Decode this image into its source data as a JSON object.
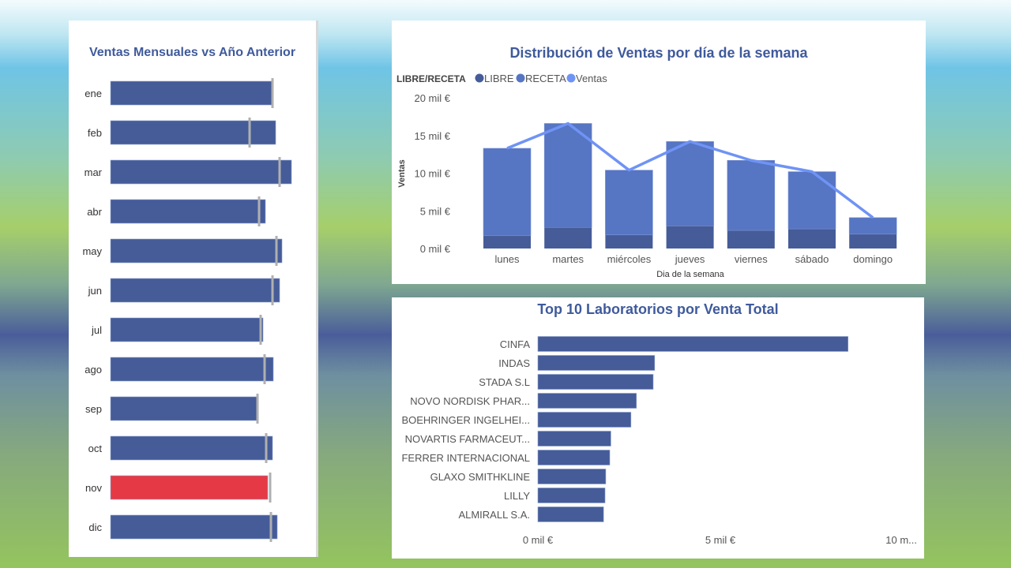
{
  "chart_data": [
    {
      "type": "bar",
      "orientation": "horizontal-bullet",
      "title": "Ventas Mensuales vs Año Anterior",
      "categories": [
        "ene",
        "feb",
        "mar",
        "abr",
        "may",
        "jun",
        "jul",
        "ago",
        "sep",
        "oct",
        "nov",
        "dic"
      ],
      "series": [
        {
          "name": "Ventas",
          "values": [
            205,
            209,
            229,
            196,
            217,
            214,
            193,
            206,
            185,
            205,
            199,
            211
          ]
        },
        {
          "name": "Año Anterior",
          "values": [
            205,
            176,
            214,
            188,
            210,
            205,
            190,
            195,
            186,
            197,
            202,
            203
          ]
        }
      ],
      "highlight": {
        "category": "nov",
        "color": "#e63946"
      },
      "xlim": [
        0,
        240
      ],
      "colors": {
        "bar": "#455c99",
        "target": "#b0b0b0"
      }
    },
    {
      "type": "bar",
      "stacked": true,
      "title": "Distribución de Ventas por día de la semana",
      "legend_title": "LIBRE/RECETA",
      "legend": [
        "LIBRE",
        "RECETA",
        "Ventas"
      ],
      "xlabel": "Dia de la semana",
      "ylabel": "Ventas",
      "yticks": [
        "0 mil €",
        "5 mil €",
        "10 mil €",
        "15 mil €",
        "20 mil €"
      ],
      "ylim": [
        0,
        20
      ],
      "categories": [
        "lunes",
        "martes",
        "miércoles",
        "jueves",
        "viernes",
        "sábado",
        "domingo"
      ],
      "series": [
        {
          "name": "LIBRE",
          "values": [
            1.7,
            2.8,
            1.8,
            3.0,
            2.4,
            2.6,
            1.9
          ],
          "color": "#455c99"
        },
        {
          "name": "RECETA",
          "values": [
            11.6,
            13.8,
            8.6,
            11.2,
            9.3,
            7.6,
            2.2
          ],
          "color": "#5675c2"
        },
        {
          "name": "Ventas",
          "type": "line",
          "values": [
            13.3,
            16.6,
            10.4,
            14.2,
            11.7,
            10.2,
            4.1
          ],
          "color": "#6f93f5"
        }
      ]
    },
    {
      "type": "bar",
      "orientation": "horizontal",
      "title": "Top 10 Laboratorios por Venta Total",
      "categories": [
        "CINFA",
        "INDAS",
        "STADA S.L",
        "NOVO NORDISK PHAR...",
        "BOEHRINGER INGELHEI...",
        "NOVARTIS FARMACEUT...",
        "FERRER INTERNACIONAL",
        "GLAXO SMITHKLINE",
        "LILLY",
        "ALMIRALL S.A."
      ],
      "values": [
        8.5,
        3.2,
        3.16,
        2.7,
        2.55,
        2.0,
        1.97,
        1.86,
        1.84,
        1.8
      ],
      "xticks": [
        "0 mil €",
        "5 mil €",
        "10 m..."
      ],
      "xlim": [
        0,
        10.4
      ],
      "color": "#455c99"
    }
  ]
}
